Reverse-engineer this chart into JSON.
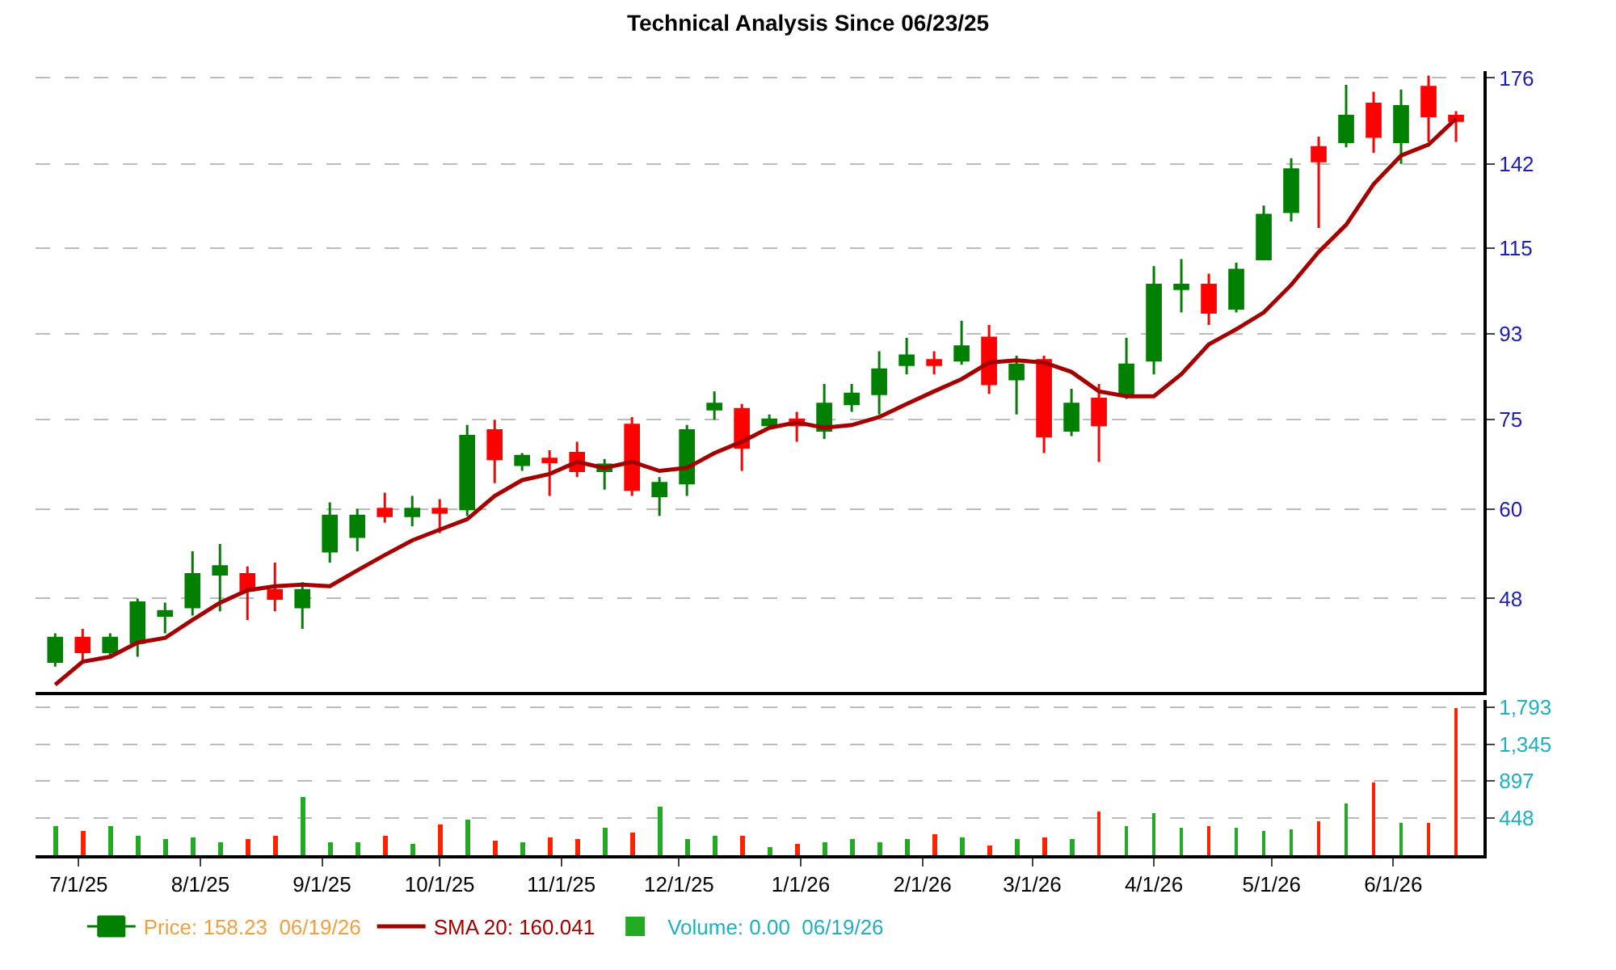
{
  "chart_data": [
    {
      "type": "candlestick",
      "title": "Technical Analysis Since 06/23/25",
      "x": [
        "2025-06-25",
        "2025-07-02",
        "2025-07-09",
        "2025-07-16",
        "2025-07-23",
        "2025-07-30",
        "2025-08-06",
        "2025-08-13",
        "2025-08-20",
        "2025-08-27",
        "2025-09-03",
        "2025-09-10",
        "2025-09-17",
        "2025-09-24",
        "2025-10-01",
        "2025-10-08",
        "2025-10-15",
        "2025-10-22",
        "2025-10-29",
        "2025-11-05",
        "2025-11-12",
        "2025-11-19",
        "2025-11-26",
        "2025-12-03",
        "2025-12-10",
        "2025-12-17",
        "2025-12-24",
        "2025-12-31",
        "2026-01-07",
        "2026-01-14",
        "2026-01-21",
        "2026-01-28",
        "2026-02-04",
        "2026-02-11",
        "2026-02-18",
        "2026-02-25",
        "2026-03-04",
        "2026-03-11",
        "2026-03-18",
        "2026-03-25",
        "2026-04-01",
        "2026-04-08",
        "2026-04-15",
        "2026-04-22",
        "2026-04-29",
        "2026-05-06",
        "2026-05-13",
        "2026-05-20",
        "2026-05-27",
        "2026-06-03",
        "2026-06-10",
        "2026-06-17"
      ],
      "series": [
        {
          "type": "candlestick",
          "name": "Price: 158.23  06/19/26",
          "color": "#f0a040",
          "colors": [
            "#008000",
            "#ff0000",
            "#008000",
            "#008000",
            "#008000",
            "#008000",
            "#008000",
            "#ff0000",
            "#ff0000",
            "#008000",
            "#008000",
            "#008000",
            "#ff0000",
            "#008000",
            "#ff0000",
            "#008000",
            "#ff0000",
            "#008000",
            "#ff0000",
            "#ff0000",
            "#008000",
            "#ff0000",
            "#008000",
            "#008000",
            "#008000",
            "#ff0000",
            "#008000",
            "#ff0000",
            "#008000",
            "#008000",
            "#008000",
            "#008000",
            "#ff0000",
            "#008000",
            "#ff0000",
            "#008000",
            "#ff0000",
            "#008000",
            "#ff0000",
            "#008000",
            "#008000",
            "#008000",
            "#ff0000",
            "#008000",
            "#008000",
            "#008000",
            "#ff0000",
            "#008000",
            "#ff0000",
            "#008000",
            "#ff0000",
            "#ff0000"
          ],
          "ohlc": [
            [
              41,
              44,
              40.5,
              43.5
            ],
            [
              43.5,
              44.5,
              41,
              42
            ],
            [
              42,
              44,
              41.5,
              43.5
            ],
            [
              43,
              48,
              41.5,
              47.5
            ],
            [
              46,
              47.5,
              44,
              46.5
            ],
            [
              47,
              54,
              46,
              51
            ],
            [
              51,
              55,
              46.5,
              52
            ],
            [
              51,
              52,
              45.5,
              49
            ],
            [
              49,
              52.5,
              46.5,
              48
            ],
            [
              47,
              50,
              44.5,
              49
            ],
            [
              54,
              61,
              52.5,
              59
            ],
            [
              56,
              60,
              54,
              59
            ],
            [
              60,
              62.5,
              58,
              59
            ],
            [
              59,
              62,
              57.5,
              60
            ],
            [
              60,
              61.5,
              56.5,
              59.5
            ],
            [
              60,
              74,
              59,
              72
            ],
            [
              73,
              75,
              64,
              68
            ],
            [
              67,
              69,
              66,
              68.5
            ],
            [
              68,
              69.5,
              62,
              67.5
            ],
            [
              69,
              71,
              65,
              66
            ],
            [
              66,
              68,
              63,
              67
            ],
            [
              74,
              75.5,
              62,
              63
            ],
            [
              62,
              65,
              59,
              64
            ],
            [
              64,
              74,
              62,
              73
            ],
            [
              77,
              80.5,
              75,
              78
            ],
            [
              77,
              78,
              66,
              70
            ],
            [
              74,
              76,
              74,
              75
            ],
            [
              75,
              76.5,
              71,
              74
            ],
            [
              73,
              82,
              71.5,
              78
            ],
            [
              78,
              82,
              76.5,
              80
            ],
            [
              80,
              89,
              76,
              85
            ],
            [
              86,
              92,
              84,
              88
            ],
            [
              87,
              89,
              84,
              86
            ],
            [
              87,
              96,
              86,
              90
            ],
            [
              92,
              95,
              80,
              82
            ],
            [
              83,
              88,
              76,
              86
            ],
            [
              87,
              88,
              69,
              72
            ],
            [
              73,
              81,
              72,
              78
            ],
            [
              79,
              82,
              67.5,
              74
            ],
            [
              80,
              92,
              79,
              86
            ],
            [
              87,
              110,
              84,
              105
            ],
            [
              104,
              112,
              98,
              105
            ],
            [
              105,
              108,
              95,
              98
            ],
            [
              99,
              111,
              98,
              109
            ],
            [
              112,
              128,
              112,
              125
            ],
            [
              126,
              144,
              123,
              140
            ],
            [
              148,
              152,
              121,
              143
            ],
            [
              150,
              173,
              148,
              160
            ],
            [
              165,
              170,
              146,
              152
            ],
            [
              150,
              171,
              142,
              164
            ],
            [
              172,
              177,
              150,
              160
            ],
            [
              160,
              162,
              150,
              158.23
            ]
          ]
        },
        {
          "type": "line",
          "name": "SMA 20: 160.041",
          "color": "#a50000",
          "values": [
            38.7,
            41,
            41.5,
            43,
            43.5,
            45.5,
            47.5,
            49,
            49.5,
            49.7,
            49.5,
            51.5,
            53.5,
            55.5,
            57,
            58.5,
            62,
            64.5,
            65.5,
            67.5,
            66.5,
            67.5,
            66,
            66.5,
            69,
            71,
            73.5,
            74.5,
            73.5,
            74,
            75.5,
            78,
            80.5,
            83,
            86.5,
            87,
            86.5,
            84.5,
            80.5,
            79.5,
            79.5,
            84,
            90.5,
            94,
            98,
            105,
            114,
            122,
            135,
            145,
            149,
            159
          ]
        }
      ],
      "xlim": [
        "2025-06-20",
        "2026-06-24"
      ],
      "ylim": [
        38,
        179
      ],
      "yticks": [
        48,
        60,
        75,
        93,
        115,
        142,
        176
      ],
      "log": "y",
      "grid": "y",
      "legend": "bottom",
      "tick_labels": "y"
    },
    {
      "type": "bar",
      "x": [
        "2025-06-25",
        "2025-07-02",
        "2025-07-09",
        "2025-07-16",
        "2025-07-23",
        "2025-07-30",
        "2025-08-06",
        "2025-08-13",
        "2025-08-20",
        "2025-08-27",
        "2025-09-03",
        "2025-09-10",
        "2025-09-17",
        "2025-09-24",
        "2025-10-01",
        "2025-10-08",
        "2025-10-15",
        "2025-10-22",
        "2025-10-29",
        "2025-11-05",
        "2025-11-12",
        "2025-11-19",
        "2025-11-26",
        "2025-12-03",
        "2025-12-10",
        "2025-12-17",
        "2025-12-24",
        "2025-12-31",
        "2026-01-07",
        "2026-01-14",
        "2026-01-21",
        "2026-01-28",
        "2026-02-04",
        "2026-02-11",
        "2026-02-18",
        "2026-02-25",
        "2026-03-04",
        "2026-03-11",
        "2026-03-18",
        "2026-03-25",
        "2026-04-01",
        "2026-04-08",
        "2026-04-15",
        "2026-04-22",
        "2026-04-29",
        "2026-05-06",
        "2026-05-13",
        "2026-05-20",
        "2026-05-27",
        "2026-06-03",
        "2026-06-10",
        "2026-06-17"
      ],
      "series": [
        {
          "name": "Volume: 0.00  06/19/26",
          "color": "#20b0c0",
          "values": [
            350,
            290,
            350,
            240,
            200,
            210,
            150,
            190,
            230,
            700,
            150,
            150,
            240,
            140,
            370,
            430,
            170,
            150,
            210,
            190,
            340,
            270,
            590,
            190,
            230,
            230,
            90,
            140,
            150,
            200,
            150,
            190,
            260,
            210,
            120,
            190,
            210,
            190,
            530,
            360,
            500,
            340,
            350,
            340,
            300,
            320,
            410,
            630,
            880,
            390,
            390,
            1780
          ],
          "colors": [
            "#22aa22",
            "#ff2200",
            "#22aa22",
            "#22aa22",
            "#22aa22",
            "#22aa22",
            "#22aa22",
            "#ff2200",
            "#ff2200",
            "#22aa22",
            "#22aa22",
            "#22aa22",
            "#ff2200",
            "#22aa22",
            "#ff2200",
            "#22aa22",
            "#ff2200",
            "#22aa22",
            "#ff2200",
            "#ff2200",
            "#22aa22",
            "#ff2200",
            "#22aa22",
            "#22aa22",
            "#22aa22",
            "#ff2200",
            "#22aa22",
            "#ff2200",
            "#22aa22",
            "#22aa22",
            "#22aa22",
            "#22aa22",
            "#ff2200",
            "#22aa22",
            "#ff2200",
            "#22aa22",
            "#ff2200",
            "#22aa22",
            "#ff2200",
            "#22aa22",
            "#22aa22",
            "#22aa22",
            "#ff2200",
            "#22aa22",
            "#22aa22",
            "#22aa22",
            "#ff2200",
            "#22aa22",
            "#ff2200",
            "#22aa22",
            "#ff2200",
            "#ff2200"
          ]
        }
      ],
      "xlim": [
        "2025-06-20",
        "2026-06-24"
      ],
      "xticks": [
        {
          "value": "2025-07-01",
          "label": "7/1/25"
        },
        {
          "value": "2025-08-01",
          "label": "8/1/25"
        },
        {
          "value": "2025-09-01",
          "label": "9/1/25"
        },
        {
          "value": "2025-10-01",
          "label": "10/1/25"
        },
        {
          "value": "2025-11-01",
          "label": "11/1/25"
        },
        {
          "value": "2025-12-01",
          "label": "12/1/25"
        },
        {
          "value": "2026-01-01",
          "label": "1/1/26"
        },
        {
          "value": "2026-02-01",
          "label": "2/1/26"
        },
        {
          "value": "2026-03-01",
          "label": "3/1/26"
        },
        {
          "value": "2026-04-01",
          "label": "4/1/26"
        },
        {
          "value": "2026-05-01",
          "label": "5/1/26"
        },
        {
          "value": "2026-06-01",
          "label": "6/1/26"
        }
      ],
      "ylim": [
        0,
        1880
      ],
      "yticks": [
        448,
        897,
        {
          "value": 1345,
          "label": "1,345"
        },
        {
          "value": 1793,
          "label": "1,793"
        }
      ],
      "grid": "y",
      "legend": "bottom"
    }
  ]
}
